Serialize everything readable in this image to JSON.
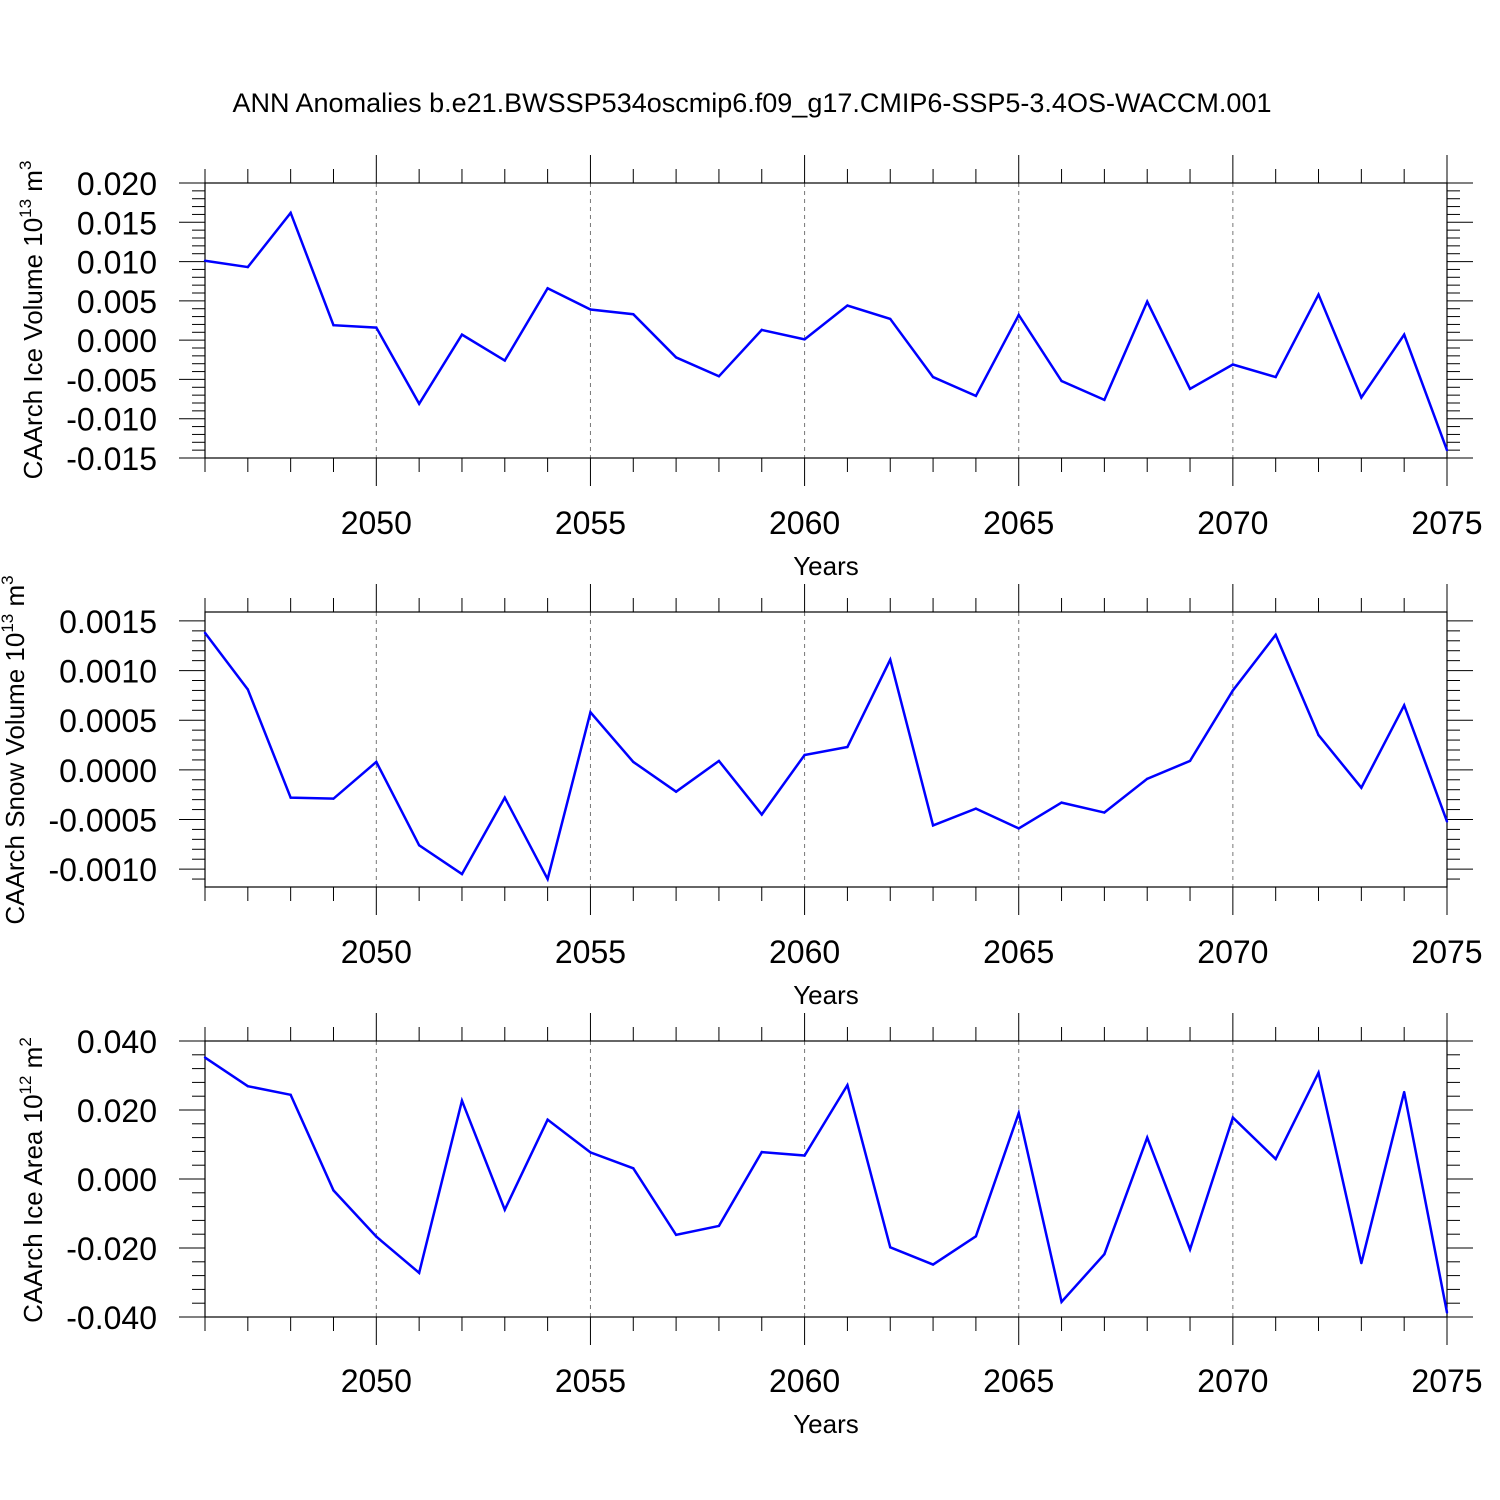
{
  "chart_data": {
    "title": "ANN Anomalies b.e21.BWSSP534oscmip6.f09_g17.CMIP6-SSP5-3.4OS-WACCM.001",
    "panels": [
      {
        "type": "line",
        "ylabel": {
          "base": "CAArch Ice Volume 10",
          "exponent": "13",
          "unit": " m",
          "unit_exponent": "3"
        },
        "xlabel": "Years",
        "xlim": [
          2046,
          2075
        ],
        "ylim": [
          -0.015,
          0.02
        ],
        "xticks": [
          2050,
          2055,
          2060,
          2065,
          2070,
          2075
        ],
        "xtick_labels": [
          "2050",
          "2055",
          "2060",
          "2065",
          "2070",
          "2075"
        ],
        "yticks": [
          0.02,
          0.015,
          0.01,
          0.005,
          0.0,
          -0.005,
          -0.01,
          -0.015
        ],
        "ytick_labels": [
          "0.020",
          "0.015",
          "0.010",
          "0.005",
          "0.000",
          "-0.005",
          "-0.010",
          "-0.015"
        ],
        "color": "#0000ff",
        "x": [
          2046,
          2047,
          2048,
          2049,
          2050,
          2051,
          2052,
          2053,
          2054,
          2055,
          2056,
          2057,
          2058,
          2059,
          2060,
          2061,
          2062,
          2063,
          2064,
          2065,
          2066,
          2067,
          2068,
          2069,
          2070,
          2071,
          2072,
          2073,
          2074,
          2075
        ],
        "values": [
          0.0101,
          0.0093,
          0.0162,
          0.0019,
          0.0016,
          -0.0081,
          0.0007,
          -0.0026,
          0.0066,
          0.0039,
          0.0033,
          -0.0022,
          -0.0046,
          0.0013,
          0.0001,
          0.0044,
          0.0027,
          -0.0047,
          -0.0071,
          0.0032,
          -0.0052,
          -0.0076,
          0.0049,
          -0.0062,
          -0.0031,
          -0.0047,
          0.0058,
          -0.0073,
          0.0007,
          -0.014
        ]
      },
      {
        "type": "line",
        "ylabel": {
          "base": "CAArch Snow Volume 10",
          "exponent": "13",
          "unit": " m",
          "unit_exponent": "3"
        },
        "xlabel": "Years",
        "xlim": [
          2046,
          2075
        ],
        "ylim": [
          -0.00118,
          0.00159
        ],
        "xticks": [
          2050,
          2055,
          2060,
          2065,
          2070,
          2075
        ],
        "xtick_labels": [
          "2050",
          "2055",
          "2060",
          "2065",
          "2070",
          "2075"
        ],
        "yticks": [
          0.0015,
          0.001,
          0.0005,
          0.0,
          -0.0005,
          -0.001
        ],
        "ytick_labels": [
          "0.0015",
          "0.0010",
          "0.0005",
          "0.0000",
          "-0.0005",
          "-0.0010"
        ],
        "color": "#0000ff",
        "x": [
          2046,
          2047,
          2048,
          2049,
          2050,
          2051,
          2052,
          2053,
          2054,
          2055,
          2056,
          2057,
          2058,
          2059,
          2060,
          2061,
          2062,
          2063,
          2064,
          2065,
          2066,
          2067,
          2068,
          2069,
          2070,
          2071,
          2072,
          2073,
          2074,
          2075
        ],
        "values": [
          0.00138,
          0.00081,
          -0.00028,
          -0.00029,
          8e-05,
          -0.00076,
          -0.00105,
          -0.00028,
          -0.0011,
          0.00058,
          8e-05,
          -0.00022,
          9e-05,
          -0.00045,
          0.00015,
          0.00023,
          0.00111,
          -0.00056,
          -0.00039,
          -0.00059,
          -0.00033,
          -0.00043,
          -9e-05,
          9e-05,
          0.0008,
          0.00136,
          0.00035,
          -0.00018,
          0.00065,
          -0.00052
        ]
      },
      {
        "type": "line",
        "ylabel": {
          "base": "CAArch Ice Area 10",
          "exponent": "12",
          "unit": " m",
          "unit_exponent": "2"
        },
        "xlabel": "Years",
        "xlim": [
          2046,
          2075
        ],
        "ylim": [
          -0.04,
          0.04
        ],
        "xticks": [
          2050,
          2055,
          2060,
          2065,
          2070,
          2075
        ],
        "xtick_labels": [
          "2050",
          "2055",
          "2060",
          "2065",
          "2070",
          "2075"
        ],
        "yticks": [
          0.04,
          0.02,
          0.0,
          -0.02,
          -0.04
        ],
        "ytick_labels": [
          "0.040",
          "0.020",
          "0.000",
          "-0.020",
          "-0.040"
        ],
        "color": "#0000ff",
        "x": [
          2046,
          2047,
          2048,
          2049,
          2050,
          2051,
          2052,
          2053,
          2054,
          2055,
          2056,
          2057,
          2058,
          2059,
          2060,
          2061,
          2062,
          2063,
          2064,
          2065,
          2066,
          2067,
          2068,
          2069,
          2070,
          2071,
          2072,
          2073,
          2074,
          2075
        ],
        "values": [
          0.0352,
          0.0269,
          0.0244,
          -0.0033,
          -0.0167,
          -0.0272,
          0.0227,
          -0.0089,
          0.0172,
          0.0077,
          0.0031,
          -0.0162,
          -0.0136,
          0.0078,
          0.0068,
          0.0272,
          -0.0198,
          -0.0248,
          -0.0166,
          0.0191,
          -0.0356,
          -0.0218,
          0.012,
          -0.0204,
          0.0178,
          0.0058,
          0.0308,
          -0.0244,
          0.0252,
          -0.0387
        ]
      }
    ]
  }
}
